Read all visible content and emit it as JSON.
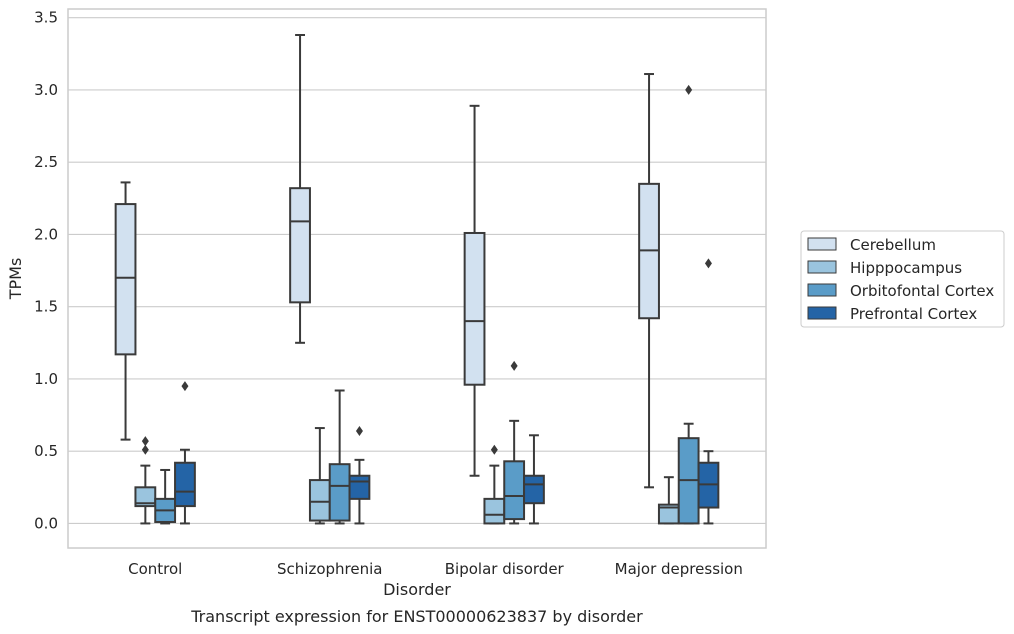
{
  "chart_data": {
    "type": "box",
    "caption": "Transcript expression for ENST00000623837 by disorder",
    "xlabel": "Disorder",
    "ylabel": "TPMs",
    "ylim": [
      -0.17,
      3.56
    ],
    "yticks": [
      0.0,
      0.5,
      1.0,
      1.5,
      2.0,
      2.5,
      3.0,
      3.5
    ],
    "ytick_labels": [
      "0.0",
      "0.5",
      "1.0",
      "1.5",
      "2.0",
      "2.5",
      "3.0",
      "3.5"
    ],
    "grid": "horizontal",
    "legend_position": "right",
    "categories": [
      "Control",
      "Schizophrenia",
      "Bipolar disorder",
      "Major depression"
    ],
    "series": [
      {
        "name": "Cerebellum",
        "color": "#d2e1f0",
        "boxes": [
          {
            "whisker_low": 0.58,
            "q1": 1.17,
            "median": 1.7,
            "q3": 2.21,
            "whisker_high": 2.36,
            "outliers": []
          },
          {
            "whisker_low": 1.25,
            "q1": 1.53,
            "median": 2.09,
            "q3": 2.32,
            "whisker_high": 3.38,
            "outliers": []
          },
          {
            "whisker_low": 0.33,
            "q1": 0.96,
            "median": 1.4,
            "q3": 2.01,
            "whisker_high": 2.89,
            "outliers": []
          },
          {
            "whisker_low": 0.25,
            "q1": 1.42,
            "median": 1.89,
            "q3": 2.35,
            "whisker_high": 3.11,
            "outliers": []
          }
        ]
      },
      {
        "name": "Hipppocampus",
        "color": "#9ac4de",
        "boxes": [
          {
            "whisker_low": 0.0,
            "q1": 0.12,
            "median": 0.14,
            "q3": 0.25,
            "whisker_high": 0.4,
            "outliers": [
              0.51,
              0.57
            ]
          },
          {
            "whisker_low": 0.0,
            "q1": 0.02,
            "median": 0.15,
            "q3": 0.3,
            "whisker_high": 0.66,
            "outliers": []
          },
          {
            "whisker_low": 0.0,
            "q1": 0.0,
            "median": 0.06,
            "q3": 0.17,
            "whisker_high": 0.4,
            "outliers": [
              0.51
            ]
          },
          {
            "whisker_low": 0.0,
            "q1": 0.0,
            "median": 0.11,
            "q3": 0.13,
            "whisker_high": 0.32,
            "outliers": []
          }
        ]
      },
      {
        "name": "Orbitofontal Cortex",
        "color": "#5a9cc8",
        "boxes": [
          {
            "whisker_low": 0.0,
            "q1": 0.01,
            "median": 0.09,
            "q3": 0.17,
            "whisker_high": 0.37,
            "outliers": []
          },
          {
            "whisker_low": 0.0,
            "q1": 0.02,
            "median": 0.26,
            "q3": 0.41,
            "whisker_high": 0.92,
            "outliers": []
          },
          {
            "whisker_low": 0.0,
            "q1": 0.03,
            "median": 0.19,
            "q3": 0.43,
            "whisker_high": 0.71,
            "outliers": [
              1.09
            ]
          },
          {
            "whisker_low": 0.0,
            "q1": 0.0,
            "median": 0.3,
            "q3": 0.59,
            "whisker_high": 0.69,
            "outliers": [
              3.0
            ]
          }
        ]
      },
      {
        "name": "Prefrontal Cortex",
        "color": "#2464a6",
        "boxes": [
          {
            "whisker_low": 0.0,
            "q1": 0.12,
            "median": 0.22,
            "q3": 0.42,
            "whisker_high": 0.51,
            "outliers": [
              0.95
            ]
          },
          {
            "whisker_low": 0.0,
            "q1": 0.17,
            "median": 0.29,
            "q3": 0.33,
            "whisker_high": 0.44,
            "outliers": [
              0.64
            ]
          },
          {
            "whisker_low": 0.0,
            "q1": 0.14,
            "median": 0.27,
            "q3": 0.33,
            "whisker_high": 0.61,
            "outliers": []
          },
          {
            "whisker_low": 0.0,
            "q1": 0.11,
            "median": 0.27,
            "q3": 0.42,
            "whisker_high": 0.5,
            "outliers": [
              1.8
            ]
          }
        ]
      }
    ]
  }
}
